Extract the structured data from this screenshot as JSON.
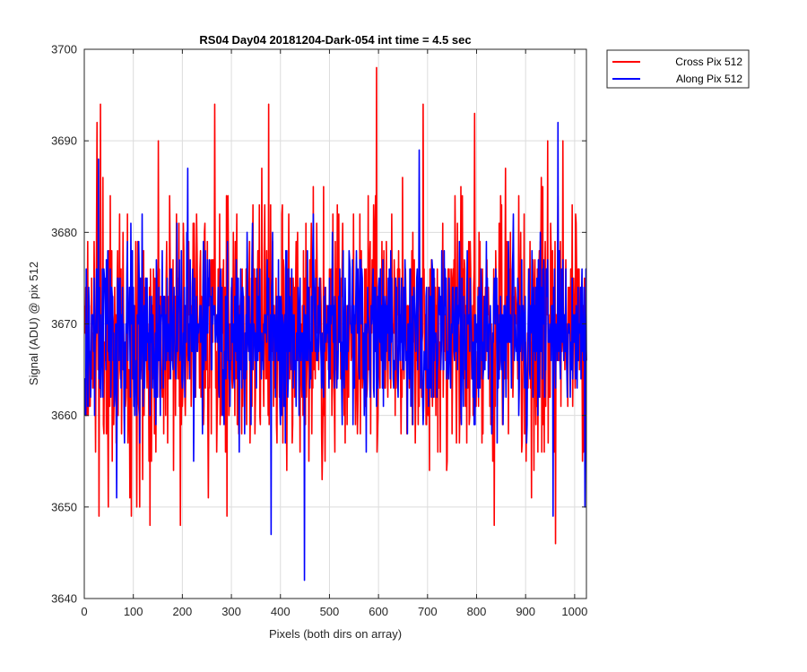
{
  "chart_data": {
    "type": "line",
    "title": "RS04 Day04 20181204-Dark-054 int time = 4.5 sec",
    "xlabel": "Pixels (both dirs on array)",
    "ylabel": "Signal (ADU) @ pix 512",
    "xlim": [
      0,
      1024
    ],
    "ylim": [
      3640,
      3700
    ],
    "xticks": [
      0,
      100,
      200,
      300,
      400,
      500,
      600,
      700,
      800,
      900,
      1000
    ],
    "yticks": [
      3640,
      3650,
      3660,
      3670,
      3680,
      3690,
      3700
    ],
    "grid": true,
    "legend_location": "outside-top-right",
    "series": [
      {
        "name": "Cross Pix 512",
        "color": "#ff0000",
        "noise_model": {
          "n_points": 1024,
          "mean": 3669,
          "std": 7,
          "seed": 11
        },
        "notable_points": [
          {
            "x": 10,
            "y": 3661
          },
          {
            "x": 25,
            "y": 3692
          },
          {
            "x": 29,
            "y": 3649
          },
          {
            "x": 32,
            "y": 3694
          },
          {
            "x": 48,
            "y": 3650
          },
          {
            "x": 95,
            "y": 3649
          },
          {
            "x": 150,
            "y": 3690
          },
          {
            "x": 195,
            "y": 3648
          },
          {
            "x": 265,
            "y": 3694
          },
          {
            "x": 290,
            "y": 3649
          },
          {
            "x": 375,
            "y": 3694
          },
          {
            "x": 595,
            "y": 3698
          },
          {
            "x": 690,
            "y": 3694
          },
          {
            "x": 795,
            "y": 3693
          },
          {
            "x": 835,
            "y": 3648
          },
          {
            "x": 960,
            "y": 3646
          },
          {
            "x": 975,
            "y": 3690
          }
        ]
      },
      {
        "name": "Along Pix 512",
        "color": "#0000ff",
        "noise_model": {
          "n_points": 1024,
          "mean": 3669,
          "std": 5,
          "seed": 29
        },
        "notable_points": [
          {
            "x": 28,
            "y": 3688
          },
          {
            "x": 65,
            "y": 3651
          },
          {
            "x": 210,
            "y": 3687
          },
          {
            "x": 380,
            "y": 3647
          },
          {
            "x": 448,
            "y": 3642
          },
          {
            "x": 682,
            "y": 3689
          },
          {
            "x": 955,
            "y": 3649
          },
          {
            "x": 965,
            "y": 3692
          },
          {
            "x": 1020,
            "y": 3650
          }
        ]
      }
    ]
  }
}
